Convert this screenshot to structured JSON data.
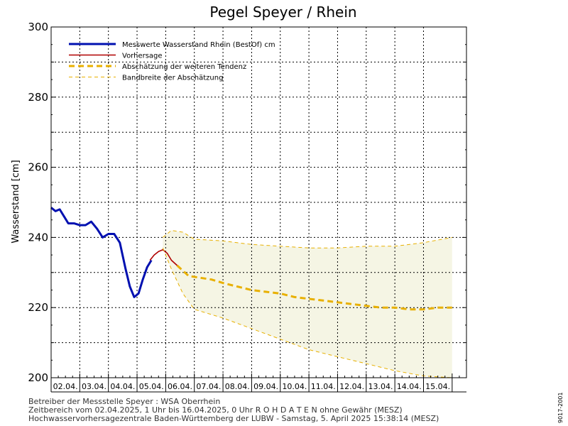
{
  "chart_data": {
    "type": "line",
    "title": "Pegel Speyer / Rhein",
    "ylabel": "Wasserstand [cm]",
    "xlabel": "",
    "ylim": [
      200,
      300
    ],
    "xlim": [
      0,
      14.5
    ],
    "yticks": [
      200,
      220,
      240,
      260,
      280,
      300
    ],
    "grid": true,
    "legend_position": "top-left",
    "categories": [
      "02.04.",
      "03.04.",
      "04.04.",
      "05.04.",
      "06.04.",
      "07.04.",
      "08.04.",
      "09.04.",
      "10.04.",
      "11.04.",
      "12.04.",
      "13.04.",
      "14.04.",
      "15.04."
    ],
    "band_color": "#f5f5e4",
    "series": [
      {
        "name": "Messwerte Wasserstand Rhein (BestOf)  cm",
        "style": "solid-thick",
        "color": "#0010b0",
        "x": [
          0.0,
          0.15,
          0.3,
          0.45,
          0.6,
          0.8,
          1.0,
          1.2,
          1.4,
          1.6,
          1.8,
          2.0,
          2.2,
          2.4,
          2.6,
          2.75,
          2.9,
          3.05,
          3.2,
          3.35,
          3.5
        ],
        "y": [
          248.5,
          247.5,
          248.0,
          246.0,
          244.0,
          244.0,
          243.5,
          243.5,
          244.5,
          242.5,
          240.0,
          241.0,
          241.0,
          238.5,
          231.0,
          226.0,
          223.0,
          224.0,
          228.0,
          231.5,
          233.5
        ]
      },
      {
        "name": "Vorhersage",
        "style": "solid",
        "color": "#b00000",
        "x": [
          3.45,
          3.6,
          3.75,
          3.9,
          4.05,
          4.2,
          4.4
        ],
        "y": [
          233.5,
          235.0,
          236.0,
          236.5,
          235.5,
          233.5,
          232.0
        ]
      },
      {
        "name": "Abschätzung der weiteren Tendenz",
        "style": "dashed-thick",
        "color": "#e8b000",
        "x": [
          4.4,
          4.8,
          5.2,
          5.6,
          6.0,
          6.5,
          7.0,
          7.5,
          8.0,
          8.5,
          9.0,
          9.5,
          10.0,
          10.5,
          11.0,
          11.5,
          12.0,
          12.5,
          13.0,
          13.5,
          14.0
        ],
        "y": [
          232.0,
          229.0,
          228.5,
          228.0,
          227.0,
          226.0,
          225.0,
          224.5,
          224.0,
          223.0,
          222.5,
          222.0,
          221.5,
          221.0,
          220.5,
          220.0,
          220.0,
          219.5,
          219.5,
          220.0,
          220.0
        ]
      },
      {
        "name": "Bandbreite der Abschätzung",
        "style": "dashed-thin",
        "color": "#e8b000",
        "x": [
          3.9,
          4.2,
          4.6,
          5.0,
          6.0,
          7.0,
          8.0,
          9.0,
          10.0,
          11.0,
          12.0,
          13.0,
          14.0
        ],
        "y": [
          240.0,
          242.0,
          241.5,
          239.5,
          239.0,
          238.0,
          237.5,
          237.0,
          237.0,
          237.5,
          237.5,
          238.5,
          240.0
        ],
        "y_lower": [
          237.0,
          231.0,
          224.0,
          219.5,
          217.0,
          214.0,
          211.0,
          208.0,
          206.0,
          204.0,
          202.0,
          200.5,
          200.0
        ]
      }
    ]
  },
  "side_code": "9017-2001",
  "footer": {
    "line1": "Betreiber der Messstelle Speyer : WSA Oberrhein",
    "line2": "Zeitbereich vom 02.04.2025, 1 Uhr bis 16.04.2025, 0 Uhr    R O H D A T E N ohne Gewähr (MESZ)",
    "line3": "Hochwasservorhersagezentrale Baden-Württemberg der LUBW - Samstag, 5. April 2025 15:38:14 (MESZ)"
  }
}
